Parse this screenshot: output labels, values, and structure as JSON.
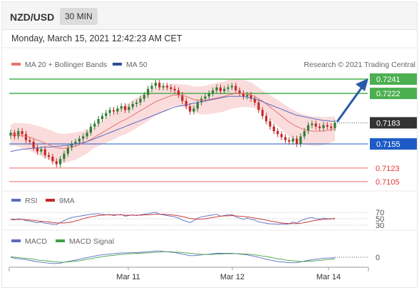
{
  "header": {
    "pair": "NZD/USD",
    "timeframe": "30 MIN"
  },
  "datetime": "Monday, March 15, 2021 12:42:23 AM CET",
  "legend": {
    "ma20": "MA 20 + Bollinger Bands",
    "ma50": "MA 50",
    "credit": "Research © 2021 Trading Central"
  },
  "colors": {
    "up": "#2e7d32",
    "down": "#c62828",
    "ma20": "#e57373",
    "ma50": "#5c6bc0",
    "bands": "#f8d0d0",
    "resistance": "#4caf50",
    "support": "#1e5bc6",
    "minor": "#e53935",
    "arrow": "#2a5ba8"
  },
  "chart_data": [
    {
      "type": "candlestick",
      "title": "NZD/USD",
      "x_ticks": [
        "Mar 11",
        "Mar 12",
        "Mar 14"
      ],
      "ylim": [
        0.7095,
        0.725
      ],
      "levels": [
        {
          "value": 0.7241,
          "label": "0.7241",
          "kind": "resistance"
        },
        {
          "value": 0.7222,
          "label": "0.7222",
          "kind": "resistance"
        },
        {
          "value": 0.7183,
          "label": "0.7183",
          "kind": "last"
        },
        {
          "value": 0.7155,
          "label": "0.7155",
          "kind": "support"
        },
        {
          "value": 0.7123,
          "label": "0.7123",
          "kind": "minor"
        },
        {
          "value": 0.7105,
          "label": "0.7105",
          "kind": "minor"
        }
      ],
      "closes": [
        0.717,
        0.7165,
        0.7172,
        0.7168,
        0.716,
        0.7158,
        0.715,
        0.7145,
        0.7148,
        0.714,
        0.7138,
        0.7132,
        0.7128,
        0.7135,
        0.7142,
        0.715,
        0.7155,
        0.7158,
        0.7162,
        0.7165,
        0.717,
        0.7178,
        0.7182,
        0.7188,
        0.7192,
        0.7196,
        0.72,
        0.7198,
        0.7202,
        0.7205,
        0.72,
        0.7204,
        0.7208,
        0.721,
        0.7215,
        0.722,
        0.7228,
        0.7232,
        0.7236,
        0.723,
        0.7232,
        0.723,
        0.7228,
        0.7226,
        0.722,
        0.7212,
        0.7205,
        0.7198,
        0.7202,
        0.721,
        0.7215,
        0.7218,
        0.7222,
        0.7226,
        0.723,
        0.7225,
        0.7228,
        0.723,
        0.7232,
        0.7226,
        0.7222,
        0.7218,
        0.722,
        0.7215,
        0.721,
        0.72,
        0.7192,
        0.7185,
        0.7178,
        0.7172,
        0.7168,
        0.7164,
        0.716,
        0.7158,
        0.7162,
        0.7155,
        0.7165,
        0.7172,
        0.718,
        0.7182,
        0.7178,
        0.7176,
        0.718,
        0.7178,
        0.7176,
        0.7183
      ],
      "ma_series": [
        {
          "name": "MA 20",
          "values": [
            0.7166,
            0.7168,
            0.7167,
            0.7166,
            0.7165,
            0.7164,
            0.7162,
            0.716,
            0.7158,
            0.7156,
            0.7154,
            0.7152,
            0.715,
            0.7149,
            0.7149,
            0.715,
            0.7151,
            0.7152,
            0.7154,
            0.7156,
            0.7158,
            0.7161,
            0.7164,
            0.7167,
            0.717,
            0.7173,
            0.7176,
            0.7179,
            0.7182,
            0.7185,
            0.7187,
            0.719,
            0.7193,
            0.7196,
            0.7199,
            0.7202,
            0.7205,
            0.7208,
            0.7211,
            0.7213,
            0.7215,
            0.7217,
            0.7219,
            0.722,
            0.722,
            0.7219,
            0.7218,
            0.7216,
            0.7214,
            0.7213,
            0.7213,
            0.7213,
            0.7214,
            0.7215,
            0.7216,
            0.7217,
            0.7218,
            0.722,
            0.7221,
            0.7222,
            0.7222,
            0.7222,
            0.7221,
            0.722,
            0.7218,
            0.7215,
            0.7212,
            0.7208,
            0.7204,
            0.72,
            0.7196,
            0.7192,
            0.7188,
            0.7184,
            0.7181,
            0.7178,
            0.7176,
            0.7174,
            0.7173,
            0.7172,
            0.7172,
            0.7172,
            0.7172,
            0.7173,
            0.7174,
            0.7175
          ]
        },
        {
          "name": "MA 50",
          "values": [
            0.7145,
            0.7146,
            0.7147,
            0.7148,
            0.7148,
            0.7149,
            0.7149,
            0.715,
            0.715,
            0.7151,
            0.7151,
            0.7151,
            0.7152,
            0.7152,
            0.7153,
            0.7153,
            0.7154,
            0.7155,
            0.7156,
            0.7157,
            0.7158,
            0.716,
            0.7162,
            0.7164,
            0.7166,
            0.7168,
            0.717,
            0.7172,
            0.7174,
            0.7176,
            0.7178,
            0.718,
            0.7182,
            0.7184,
            0.7186,
            0.7188,
            0.719,
            0.7192,
            0.7194,
            0.7196,
            0.7198,
            0.72,
            0.7202,
            0.7204,
            0.7205,
            0.7206,
            0.7207,
            0.7208,
            0.7209,
            0.721,
            0.7211,
            0.7212,
            0.7213,
            0.7214,
            0.7215,
            0.7216,
            0.7217,
            0.7218,
            0.7218,
            0.7218,
            0.7218,
            0.7218,
            0.7217,
            0.7216,
            0.7215,
            0.7213,
            0.7211,
            0.7209,
            0.7207,
            0.7205,
            0.7203,
            0.7201,
            0.7199,
            0.7197,
            0.7195,
            0.7193,
            0.7192,
            0.7191,
            0.719,
            0.7189,
            0.7188,
            0.7187,
            0.7186,
            0.7186,
            0.7185,
            0.7185
          ]
        }
      ]
    },
    {
      "type": "line",
      "series": [
        {
          "name": "RSI"
        },
        {
          "name": "9MA"
        }
      ],
      "ylim": [
        20,
        80
      ],
      "levels": [
        70,
        50,
        30
      ],
      "rsi": [
        48,
        46,
        50,
        48,
        44,
        43,
        40,
        38,
        40,
        36,
        35,
        33,
        32,
        38,
        44,
        50,
        54,
        56,
        58,
        60,
        62,
        64,
        65,
        66,
        64,
        62,
        63,
        60,
        62,
        63,
        58,
        60,
        62,
        60,
        62,
        64,
        66,
        68,
        70,
        64,
        62,
        60,
        58,
        56,
        52,
        46,
        42,
        38,
        44,
        52,
        56,
        58,
        60,
        62,
        64,
        58,
        60,
        62,
        63,
        56,
        52,
        48,
        52,
        48,
        46,
        40,
        38,
        36,
        34,
        34,
        33,
        34,
        33,
        34,
        40,
        36,
        44,
        48,
        52,
        54,
        50,
        49,
        52,
        50,
        49,
        52
      ],
      "ma9": [
        49,
        48,
        48,
        48,
        47,
        46,
        45,
        43,
        42,
        41,
        40,
        38,
        37,
        37,
        37,
        38,
        40,
        43,
        46,
        50,
        53,
        56,
        58,
        60,
        61,
        62,
        62,
        62,
        62,
        62,
        61,
        61,
        61,
        61,
        61,
        62,
        62,
        63,
        64,
        64,
        64,
        63,
        62,
        61,
        59,
        57,
        54,
        51,
        50,
        49,
        49,
        50,
        52,
        54,
        56,
        58,
        59,
        59,
        60,
        59,
        58,
        57,
        56,
        54,
        52,
        50,
        48,
        46,
        43,
        41,
        39,
        37,
        36,
        35,
        35,
        35,
        36,
        38,
        40,
        43,
        45,
        47,
        48,
        49,
        50,
        50
      ]
    },
    {
      "type": "line",
      "series": [
        {
          "name": "MACD"
        },
        {
          "name": "MACD Signal"
        }
      ],
      "levels": [
        {
          "value": 0,
          "label": "0"
        }
      ],
      "macd": [
        0.0,
        -0.0003,
        -0.0004,
        -0.0005,
        -0.0006,
        -0.0008,
        -0.001,
        -0.0012,
        -0.0013,
        -0.0014,
        -0.0015,
        -0.0016,
        -0.0016,
        -0.0015,
        -0.0013,
        -0.0011,
        -0.0009,
        -0.0007,
        -0.0005,
        -0.0003,
        -0.0001,
        0.0001,
        0.0003,
        0.0005,
        0.0006,
        0.0007,
        0.0008,
        0.0009,
        0.001,
        0.0011,
        0.0011,
        0.0011,
        0.0012,
        0.0012,
        0.0013,
        0.0013,
        0.0014,
        0.0015,
        0.0016,
        0.0016,
        0.0015,
        0.0014,
        0.0013,
        0.0012,
        0.001,
        0.0008,
        0.0006,
        0.0004,
        0.0004,
        0.0005,
        0.0006,
        0.0007,
        0.0008,
        0.0009,
        0.001,
        0.001,
        0.001,
        0.001,
        0.001,
        0.0009,
        0.0008,
        0.0007,
        0.0006,
        0.0004,
        0.0002,
        0.0,
        -0.0003,
        -0.0005,
        -0.0007,
        -0.0009,
        -0.0011,
        -0.0012,
        -0.0013,
        -0.0014,
        -0.0014,
        -0.0014,
        -0.0012,
        -0.001,
        -0.0008,
        -0.0006,
        -0.0005,
        -0.0004,
        -0.0003,
        -0.0002,
        -0.0002,
        -0.0001
      ],
      "signal": [
        0.0001,
        0.0,
        -0.0001,
        -0.0002,
        -0.0003,
        -0.0004,
        -0.0005,
        -0.0007,
        -0.0008,
        -0.0009,
        -0.001,
        -0.0011,
        -0.0012,
        -0.0013,
        -0.0013,
        -0.0012,
        -0.0011,
        -0.001,
        -0.0009,
        -0.0007,
        -0.0005,
        -0.0004,
        -0.0002,
        0.0,
        0.0001,
        0.0003,
        0.0004,
        0.0005,
        0.0006,
        0.0007,
        0.0008,
        0.0009,
        0.0009,
        0.001,
        0.001,
        0.0011,
        0.0011,
        0.0012,
        0.0013,
        0.0013,
        0.0014,
        0.0014,
        0.0014,
        0.0013,
        0.0013,
        0.0012,
        0.0011,
        0.001,
        0.0009,
        0.0008,
        0.0007,
        0.0007,
        0.0007,
        0.0007,
        0.0008,
        0.0008,
        0.0009,
        0.0009,
        0.0009,
        0.0009,
        0.0009,
        0.0008,
        0.0008,
        0.0007,
        0.0006,
        0.0005,
        0.0003,
        0.0002,
        0.0,
        -0.0002,
        -0.0004,
        -0.0005,
        -0.0007,
        -0.0008,
        -0.0009,
        -0.001,
        -0.0011,
        -0.0011,
        -0.001,
        -0.001,
        -0.0009,
        -0.0008,
        -0.0007,
        -0.0006,
        -0.0005,
        -0.0004
      ]
    }
  ]
}
